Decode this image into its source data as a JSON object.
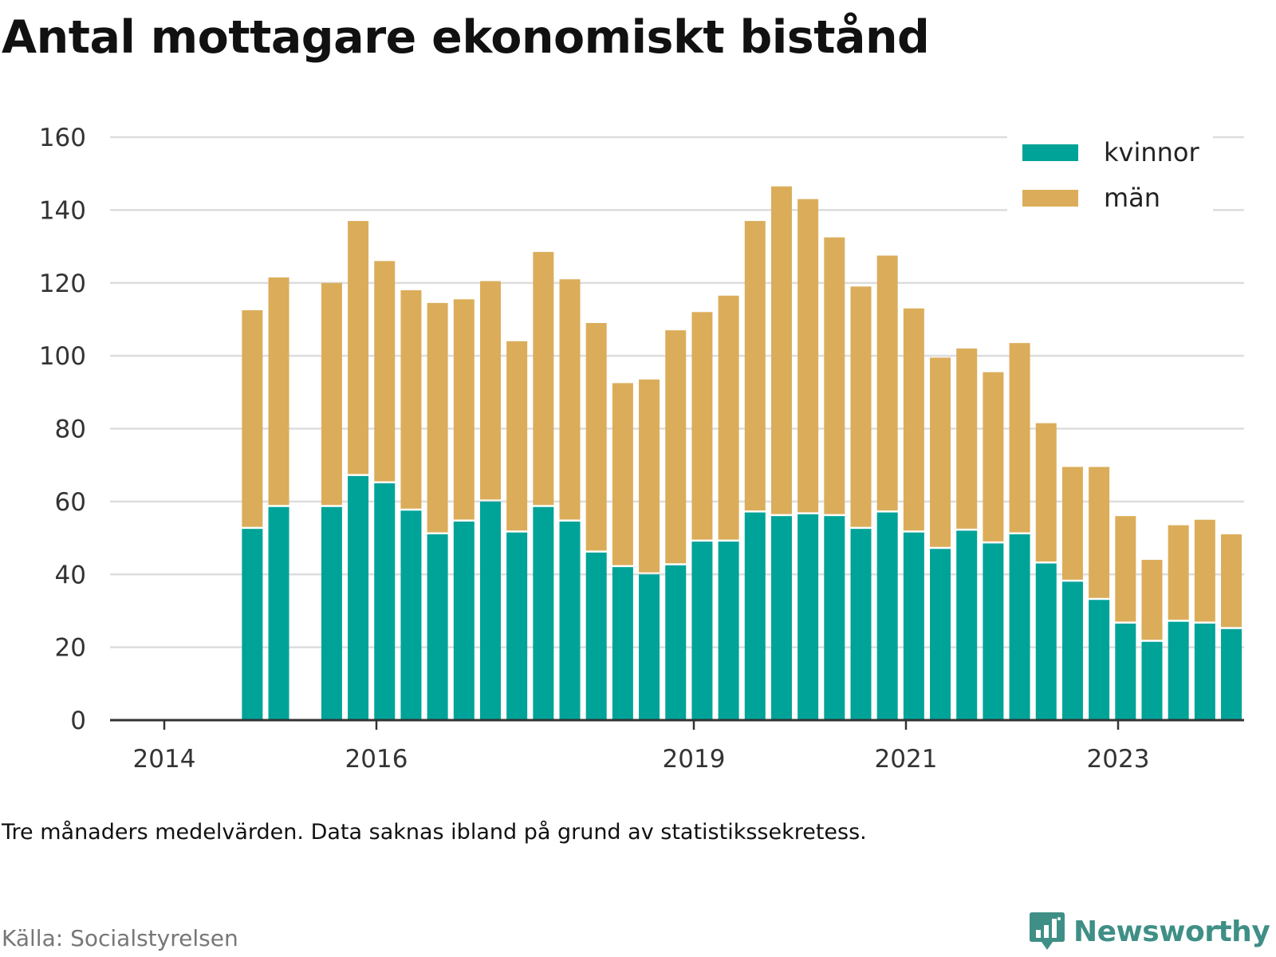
{
  "title": "Antal mottagare ekonomiskt bistånd",
  "note": "Tre månaders medelvärden. Data saknas ibland på grund av statistikssekretess.",
  "source": "Källa: Socialstyrelsen",
  "brand": "Newsworthy",
  "colors": {
    "kvinnor": "#00a398",
    "man": "#dbad5a",
    "grid": "#dddddd",
    "axis": "#333333",
    "brand": "#3f8f86"
  },
  "chart_data": {
    "type": "bar",
    "stacked": true,
    "x_ticks": [
      "2014",
      "2016",
      "2019",
      "2021",
      "2023"
    ],
    "ylim": [
      0,
      160
    ],
    "y_ticks": [
      0,
      20,
      40,
      60,
      80,
      100,
      120,
      140,
      160
    ],
    "grid": true,
    "legend_position": "top-right",
    "series": [
      {
        "name": "kvinnor",
        "values": [
          null,
          null,
          52.5,
          58.5,
          null,
          58.5,
          67,
          65,
          57.5,
          51,
          54.5,
          60,
          51.5,
          58.5,
          54.5,
          46,
          42,
          40,
          42.5,
          49,
          49,
          57,
          56,
          56.5,
          56,
          52.5,
          57,
          51.5,
          47,
          52,
          48.5,
          51,
          43,
          38,
          33,
          26.5,
          21.5,
          27,
          26.5,
          25
        ]
      },
      {
        "name": "män",
        "values": [
          null,
          null,
          60,
          63,
          null,
          61.5,
          70,
          61,
          60.5,
          63.5,
          61,
          60.5,
          52.5,
          70,
          66.5,
          63,
          50.5,
          53.5,
          64.5,
          63,
          67.5,
          80,
          90.5,
          86.5,
          76.5,
          66.5,
          70.5,
          61.5,
          52.5,
          50,
          47,
          52.5,
          38.5,
          31.5,
          36.5,
          29.5,
          22.5,
          26.5,
          28.5,
          26
        ]
      }
    ]
  }
}
